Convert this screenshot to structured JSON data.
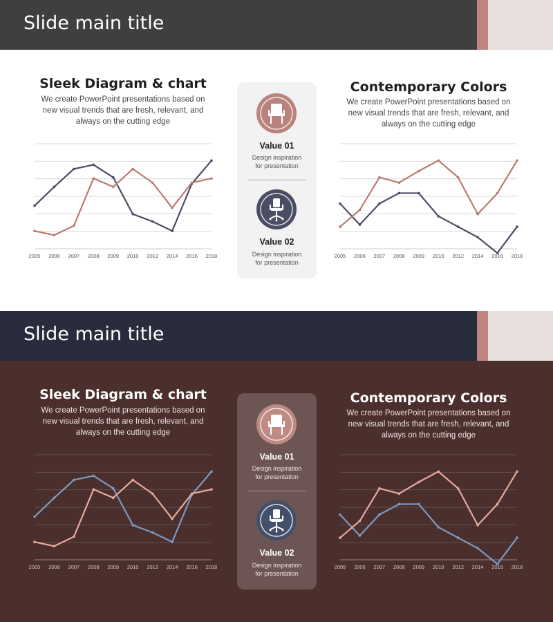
{
  "slides": [
    {
      "theme": "light",
      "title": "Slide main title",
      "colors": {
        "series_a": "#4a4d63",
        "series_b": "#b97a72",
        "grid": "#d9d9d9",
        "axis": "#cccccc",
        "tick": "#555555",
        "icon1_outer": "#b9827c",
        "icon2_outer": "#4a4d63"
      },
      "left": {
        "title": "Sleek Diagram & chart",
        "desc_lines": [
          "We create PowerPoint presentations based on",
          "new visual trends that are fresh, relevant, and",
          "always on the cutting edge"
        ]
      },
      "right": {
        "title": "Contemporary Colors",
        "desc_lines": [
          "We create PowerPoint presentations based on",
          "new visual trends that are fresh, relevant, and",
          "always on the cutting edge"
        ]
      },
      "center": {
        "value1": {
          "label": "Value 01",
          "desc_lines": [
            "Design inspiration",
            "for presentation"
          ],
          "icon": "chair-icon"
        },
        "value2": {
          "label": "Value 02",
          "desc_lines": [
            "Design inspiration",
            "for presentation"
          ],
          "icon": "office-chair-icon"
        }
      }
    },
    {
      "theme": "dark",
      "title": "Slide main title",
      "colors": {
        "series_a": "#7c9ac4",
        "series_b": "#e8aa9e",
        "grid": "#66504d",
        "axis": "#9c8683",
        "tick": "#d9c9c6",
        "icon1_outer": "#c08a84",
        "icon2_outer": "#44506a"
      },
      "left": {
        "title": "Sleek Diagram & chart",
        "desc_lines": [
          "We create PowerPoint presentations based on",
          "new visual trends that are fresh, relevant, and",
          "always on the cutting edge"
        ]
      },
      "right": {
        "title": "Contemporary Colors",
        "desc_lines": [
          "We create PowerPoint presentations based on",
          "new visual trends that are fresh, relevant, and",
          "always on the cutting edge"
        ]
      },
      "center": {
        "value1": {
          "label": "Value 01",
          "desc_lines": [
            "Design inspiration",
            "for presentation"
          ],
          "icon": "chair-icon"
        },
        "value2": {
          "label": "Value 02",
          "desc_lines": [
            "Design inspiration",
            "for presentation"
          ],
          "icon": "office-chair-icon"
        }
      }
    }
  ],
  "chart_data": [
    {
      "type": "line",
      "categories": [
        "2005",
        "2006",
        "2007",
        "2008",
        "2009",
        "2010",
        "2012",
        "2014",
        "2016",
        "2018"
      ],
      "ylim": [
        0,
        10
      ],
      "grid": true,
      "series": [
        {
          "values": [
            4.1,
            5.9,
            7.6,
            8.0,
            6.8,
            3.3,
            2.6,
            1.7,
            6.2,
            8.4
          ]
        },
        {
          "values": [
            1.7,
            1.3,
            2.2,
            6.7,
            5.9,
            7.6,
            6.3,
            3.9,
            6.3,
            6.7
          ]
        }
      ]
    },
    {
      "type": "line",
      "categories": [
        "2005",
        "2006",
        "2007",
        "2008",
        "2009",
        "2010",
        "2012",
        "2014",
        "2016",
        "2018"
      ],
      "ylim": [
        0,
        10
      ],
      "grid": true,
      "series": [
        {
          "values": [
            4.3,
            2.3,
            4.3,
            5.3,
            5.3,
            3.1,
            2.1,
            1.1,
            -0.4,
            2.1
          ]
        },
        {
          "values": [
            2.1,
            3.7,
            6.8,
            6.3,
            7.4,
            8.4,
            6.8,
            3.3,
            5.3,
            8.4
          ]
        }
      ]
    },
    {
      "type": "line",
      "categories": [
        "2005",
        "2006",
        "2007",
        "2008",
        "2009",
        "2010",
        "2012",
        "2014",
        "2016",
        "2018"
      ],
      "ylim": [
        0,
        10
      ],
      "grid": true,
      "series": [
        {
          "values": [
            4.1,
            5.9,
            7.6,
            8.0,
            6.8,
            3.3,
            2.6,
            1.7,
            6.2,
            8.4
          ]
        },
        {
          "values": [
            1.7,
            1.3,
            2.2,
            6.7,
            5.9,
            7.6,
            6.3,
            3.9,
            6.3,
            6.7
          ]
        }
      ]
    },
    {
      "type": "line",
      "categories": [
        "2005",
        "2006",
        "2007",
        "2008",
        "2009",
        "2010",
        "2012",
        "2014",
        "2016",
        "2018"
      ],
      "ylim": [
        0,
        10
      ],
      "grid": true,
      "series": [
        {
          "values": [
            4.3,
            2.3,
            4.3,
            5.3,
            5.3,
            3.1,
            2.1,
            1.1,
            -0.4,
            2.1
          ]
        },
        {
          "values": [
            2.1,
            3.7,
            6.8,
            6.3,
            7.4,
            8.4,
            6.8,
            3.3,
            5.3,
            8.4
          ]
        }
      ]
    }
  ]
}
